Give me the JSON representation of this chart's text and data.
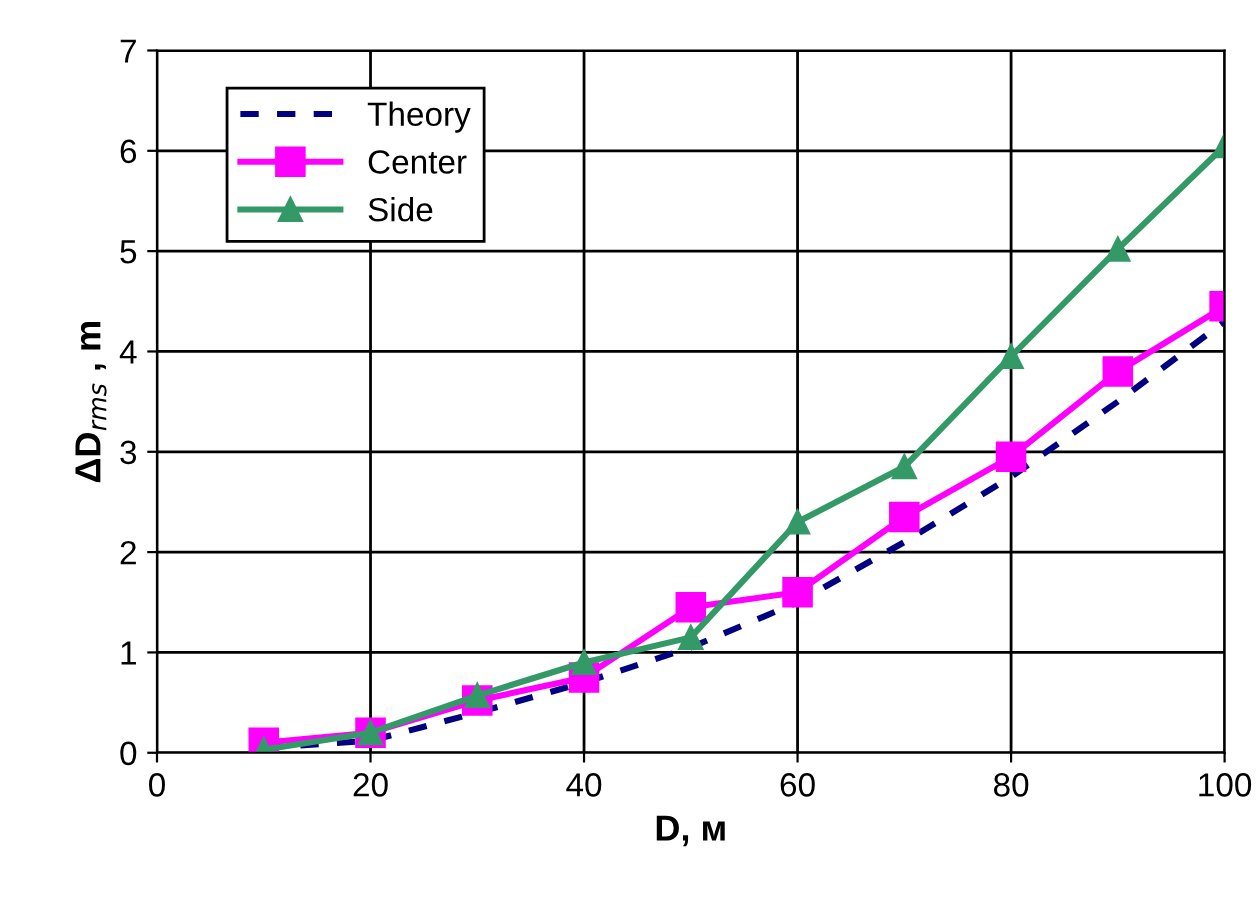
{
  "chart_data": {
    "type": "line",
    "xlabel": "D, м",
    "ylabel": "ΔD$_{rms}$ , m",
    "x": [
      10,
      20,
      30,
      40,
      50,
      60,
      70,
      80,
      90,
      100
    ],
    "xlim": [
      0,
      100
    ],
    "xticks": [
      0,
      20,
      40,
      60,
      80,
      100
    ],
    "ylim": [
      0,
      7
    ],
    "yticks": [
      0,
      1,
      2,
      3,
      4,
      5,
      6,
      7
    ],
    "grid": true,
    "legend": "top left",
    "series": [
      {
        "name": "Theory",
        "color": "#000080",
        "line_style": "dashed",
        "marker": "none",
        "values": [
          0.05,
          0.12,
          0.4,
          0.7,
          1.05,
          1.5,
          2.1,
          2.75,
          3.5,
          4.3
        ]
      },
      {
        "name": "Center",
        "color": "#ff00ff",
        "line_style": "solid",
        "marker": "square",
        "values": [
          0.1,
          0.2,
          0.52,
          0.75,
          1.45,
          1.6,
          2.35,
          2.95,
          3.8,
          4.45
        ]
      },
      {
        "name": "Side",
        "color": "#339966",
        "line_style": "solid",
        "marker": "triangle",
        "values": [
          0.03,
          0.2,
          0.57,
          0.9,
          1.15,
          2.3,
          2.85,
          3.95,
          5.02,
          6.05
        ]
      }
    ]
  }
}
